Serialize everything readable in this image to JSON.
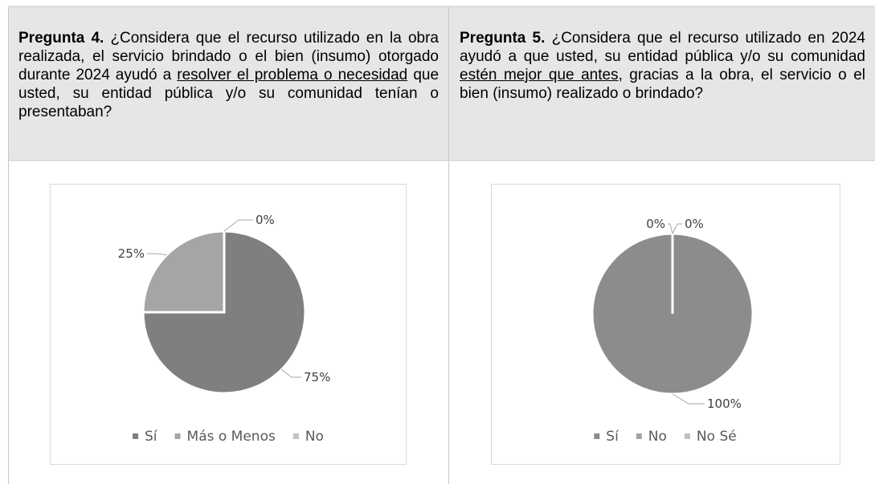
{
  "questions": [
    {
      "label": "Pregunta 4.",
      "text_before": "¿Considera que el recurso utilizado en la obra realizada, el servicio brindado o el bien (insumo) otorgado durante 2024 ayudó a",
      "underlined": "resolver el problema o necesidad",
      "text_after": "que usted, su entidad pública y/o su comunidad tenían o presentaban?"
    },
    {
      "label": "Pregunta 5.",
      "text_before": "¿Considera que el recurso utilizado en 2024 ayudó a que usted, su entidad pública y/o su comunidad",
      "underlined": "estén mejor que antes",
      "text_after": ", gracias a la obra, el servicio o el bien (insumo) realizado o brindado?"
    }
  ],
  "chart_data": [
    {
      "type": "pie",
      "categories": [
        "Sí",
        "Más o Menos",
        "No"
      ],
      "values": [
        75,
        25,
        0
      ],
      "value_labels": [
        "75%",
        "25%",
        "0%"
      ],
      "colors": [
        "#7f7f7f",
        "#a5a5a5",
        "#c0c0c0"
      ],
      "legend": "bottom"
    },
    {
      "type": "pie",
      "categories": [
        "Sí",
        "No",
        "No Sé"
      ],
      "values": [
        100,
        0,
        0
      ],
      "value_labels": [
        "100%",
        "0%",
        "0%"
      ],
      "colors": [
        "#8c8c8c",
        "#a5a5a5",
        "#c0c0c0"
      ],
      "legend": "bottom"
    }
  ]
}
